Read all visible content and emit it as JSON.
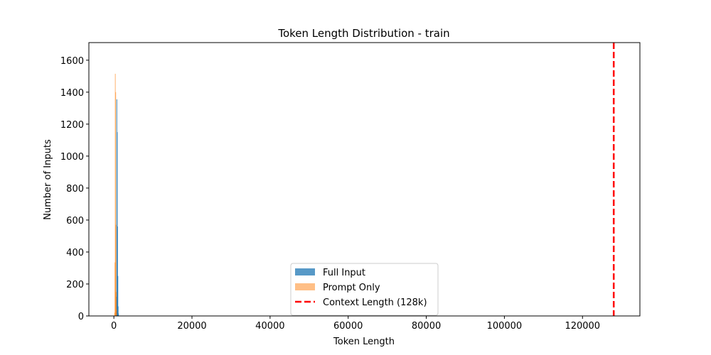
{
  "chart_data": {
    "type": "histogram",
    "title": "Token Length Distribution - train",
    "xlabel": "Token Length",
    "ylabel": "Number of Inputs",
    "xlim": [
      -6400,
      134700
    ],
    "ylim": [
      0,
      1710
    ],
    "x_ticks": [
      0,
      20000,
      40000,
      60000,
      80000,
      100000,
      120000
    ],
    "x_tick_labels": [
      "0",
      "20000",
      "40000",
      "60000",
      "80000",
      "100000",
      "120000"
    ],
    "y_ticks": [
      0,
      200,
      400,
      600,
      800,
      1000,
      1200,
      1400,
      1600
    ],
    "y_tick_labels": [
      "0",
      "200",
      "400",
      "600",
      "800",
      "1000",
      "1200",
      "1400",
      "1600"
    ],
    "grid": false,
    "legend_position": "bottom-center",
    "series": [
      {
        "name": "Full Input",
        "color": "#1f77b4",
        "opacity": 0.75,
        "bins": [
          {
            "x0": 500,
            "x1": 580,
            "count": 30
          },
          {
            "x0": 580,
            "x1": 660,
            "count": 120
          },
          {
            "x0": 660,
            "x1": 740,
            "count": 1355
          },
          {
            "x0": 740,
            "x1": 820,
            "count": 1150
          },
          {
            "x0": 820,
            "x1": 900,
            "count": 560
          },
          {
            "x0": 900,
            "x1": 980,
            "count": 250
          },
          {
            "x0": 980,
            "x1": 1060,
            "count": 60
          },
          {
            "x0": 1060,
            "x1": 1140,
            "count": 15
          }
        ]
      },
      {
        "name": "Prompt Only",
        "color": "#ff7f0e",
        "opacity": 0.5,
        "bins": [
          {
            "x0": 100,
            "x1": 180,
            "count": 20
          },
          {
            "x0": 180,
            "x1": 260,
            "count": 335
          },
          {
            "x0": 260,
            "x1": 340,
            "count": 1515
          },
          {
            "x0": 340,
            "x1": 420,
            "count": 1400
          },
          {
            "x0": 420,
            "x1": 500,
            "count": 570
          },
          {
            "x0": 500,
            "x1": 580,
            "count": 150
          },
          {
            "x0": 580,
            "x1": 660,
            "count": 40
          }
        ]
      }
    ],
    "reference_lines": [
      {
        "name": "Context Length (128k)",
        "x": 128000,
        "color": "#ff0000",
        "style": "dashed"
      }
    ]
  }
}
